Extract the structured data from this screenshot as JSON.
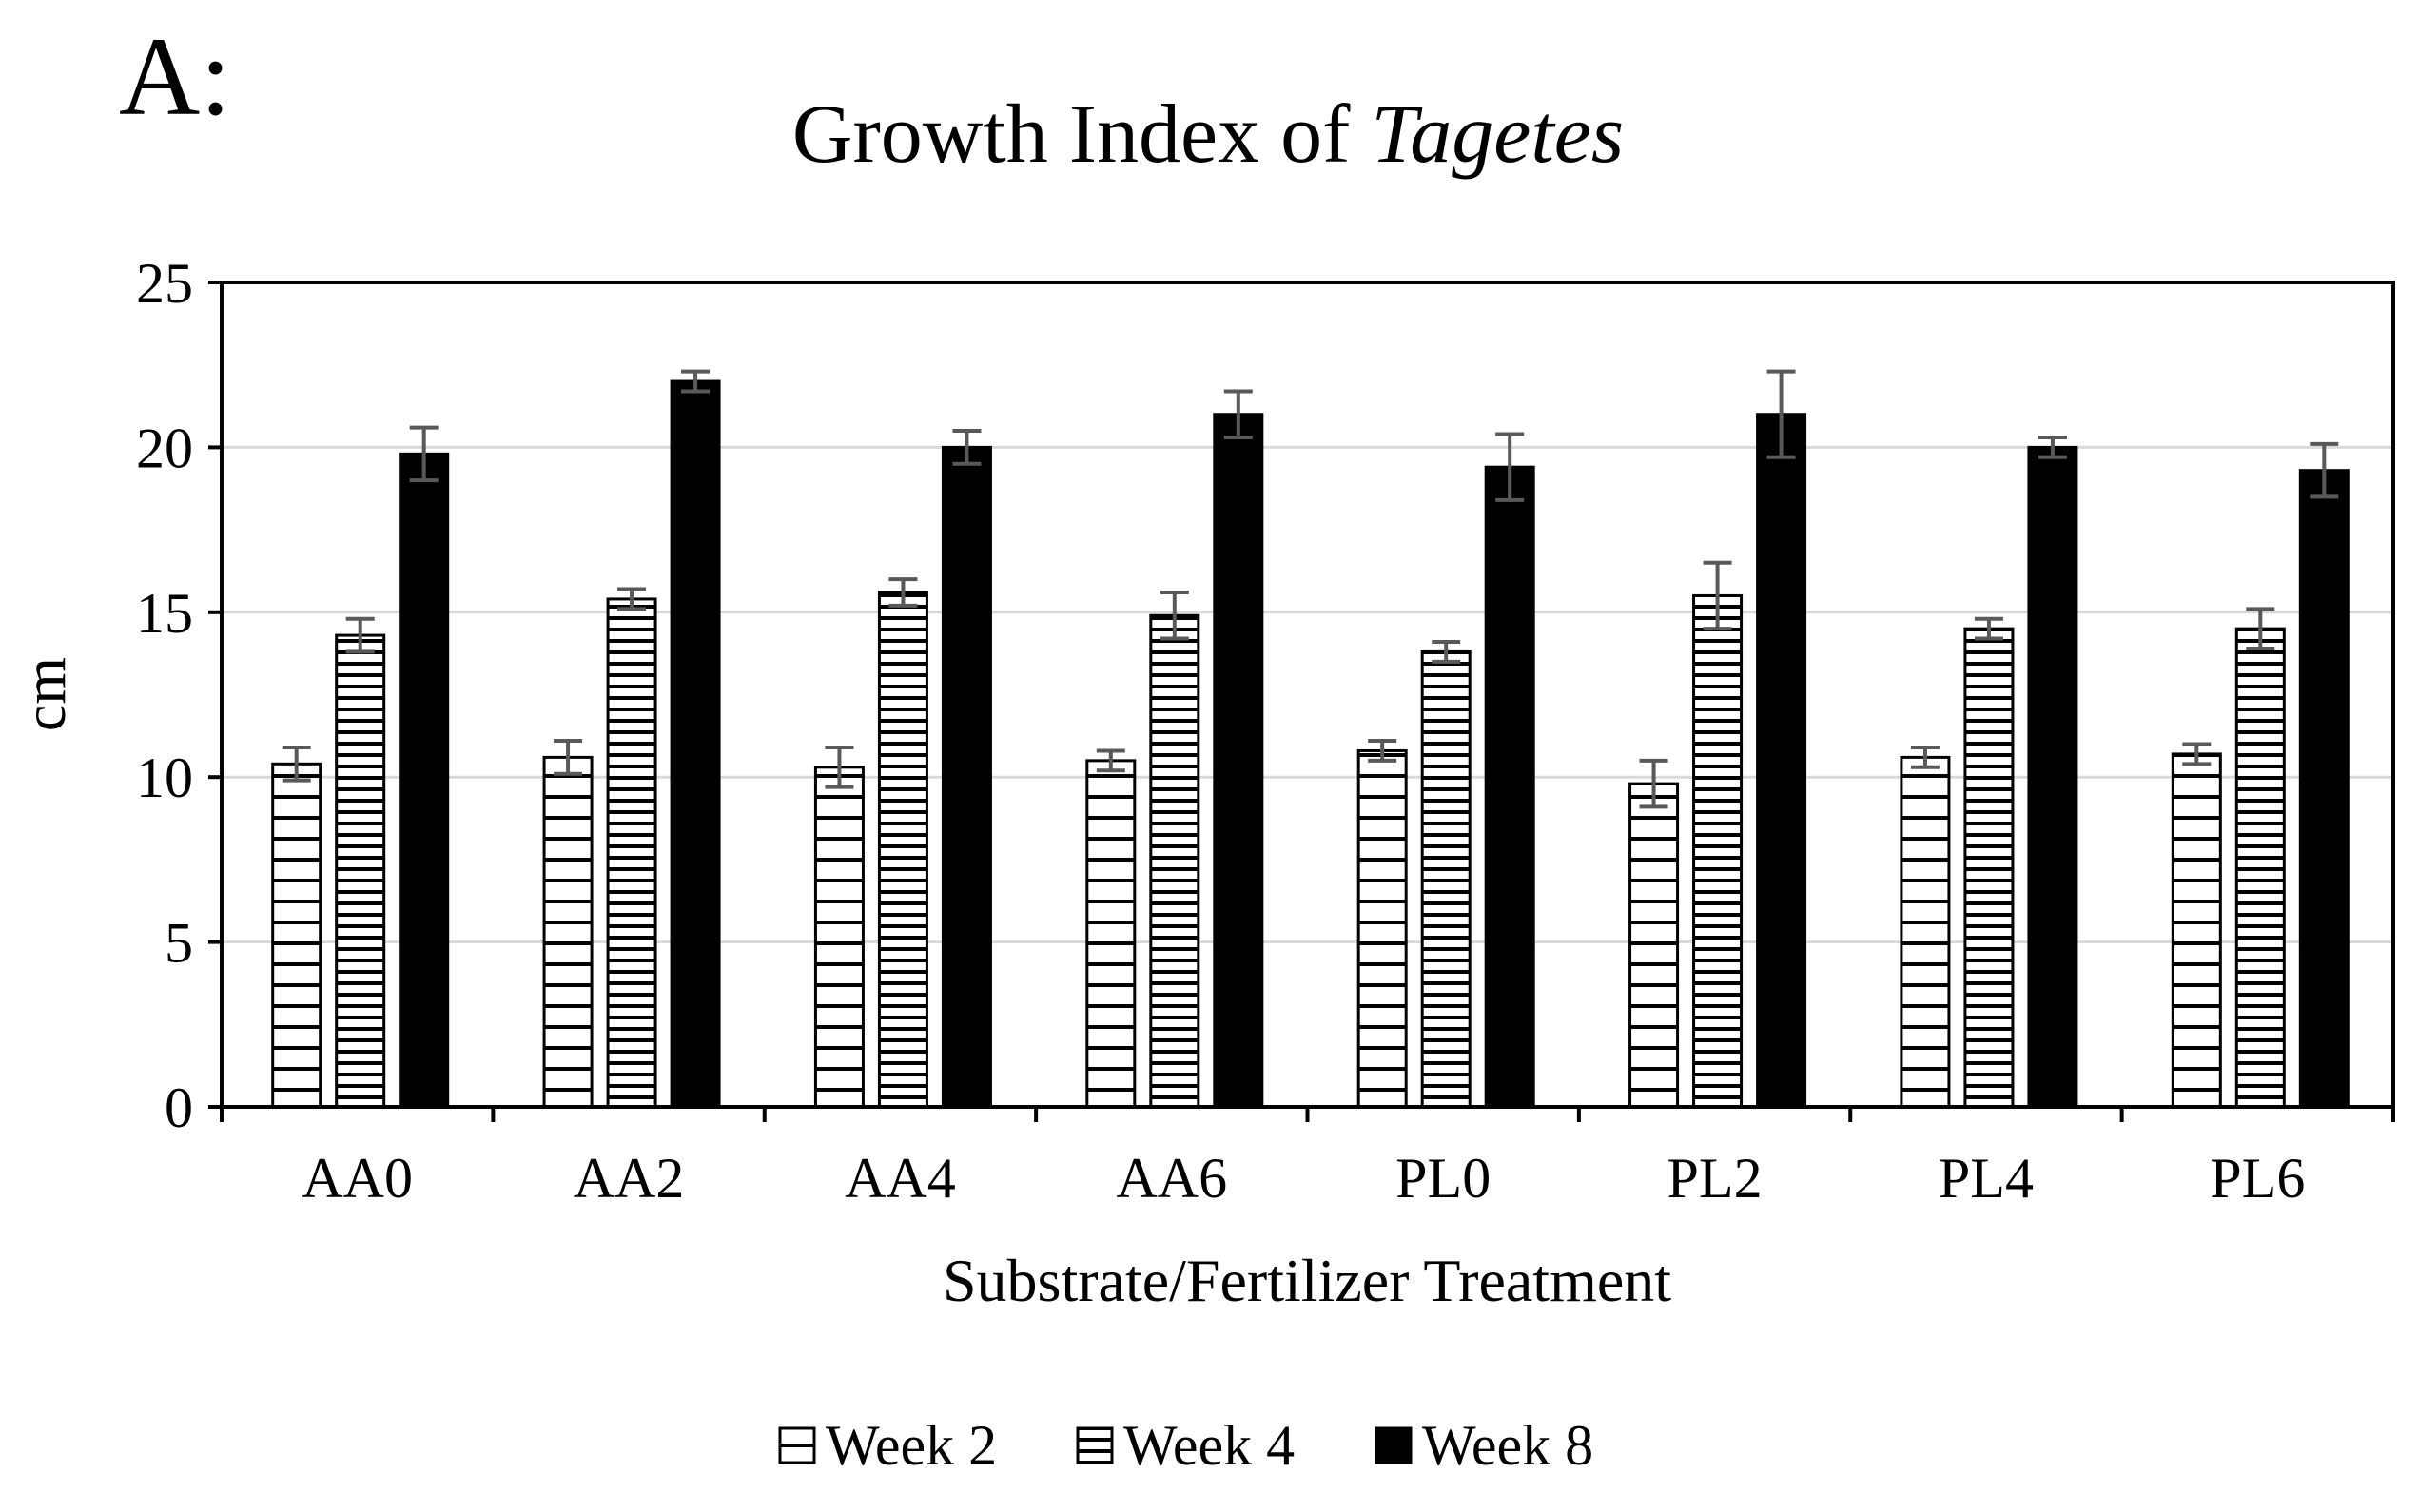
{
  "panel_label": "A:",
  "chart_data": {
    "type": "bar",
    "title_prefix": "Growth Index of ",
    "title_italic": "Tagetes",
    "xlabel": "Substrate/Fertilizer Treatment",
    "ylabel": "cm",
    "ylim": [
      0,
      25
    ],
    "yticks": [
      0,
      5,
      10,
      15,
      20,
      25
    ],
    "grid": true,
    "legend_position": "bottom",
    "categories": [
      "AA0",
      "AA2",
      "AA4",
      "AA6",
      "PL0",
      "PL2",
      "PL4",
      "PL6"
    ],
    "series": [
      {
        "name": "Week 2",
        "pattern": "thin-horizontal-stripes",
        "values": [
          10.4,
          10.6,
          10.3,
          10.5,
          10.8,
          9.8,
          10.6,
          10.7
        ],
        "errors": [
          0.5,
          0.5,
          0.6,
          0.3,
          0.3,
          0.7,
          0.3,
          0.3
        ]
      },
      {
        "name": "Week 4",
        "pattern": "dense-horizontal-stripes",
        "values": [
          14.3,
          15.4,
          15.6,
          14.9,
          13.8,
          15.5,
          14.5,
          14.5
        ],
        "errors": [
          0.5,
          0.3,
          0.4,
          0.7,
          0.3,
          1.0,
          0.3,
          0.6
        ]
      },
      {
        "name": "Week 8",
        "pattern": "solid",
        "values": [
          19.8,
          22.0,
          20.0,
          21.0,
          19.4,
          21.0,
          20.0,
          19.3
        ],
        "errors": [
          0.8,
          0.3,
          0.5,
          0.7,
          1.0,
          1.3,
          0.3,
          0.8
        ]
      }
    ]
  },
  "colors": {
    "bar_fill": "#000000",
    "background": "#ffffff",
    "gridline": "#d9d9d9",
    "error_bar": "#595959"
  }
}
